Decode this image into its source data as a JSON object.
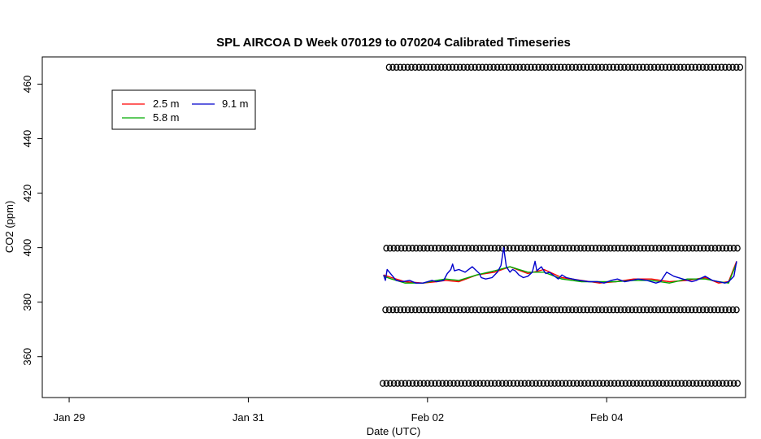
{
  "chart_data": {
    "type": "line",
    "title": "SPL AIRCOA D  Week 070129 to 070204  Calibrated Timeseries",
    "xlabel": "Date (UTC)",
    "ylabel": "CO2 (ppm)",
    "x_unit": "days (UTC)",
    "x_start_date": "2007-01-29",
    "xlim": [
      -0.3,
      7.55
    ],
    "ylim": [
      345,
      470
    ],
    "x_ticks": [
      {
        "label": "Jan 29",
        "x": 0
      },
      {
        "label": "Jan 31",
        "x": 2
      },
      {
        "label": "Feb 02",
        "x": 4
      },
      {
        "label": "Feb 04",
        "x": 6
      }
    ],
    "y_ticks": [
      360,
      380,
      400,
      420,
      440,
      460
    ],
    "legend": {
      "placement": "top-left",
      "entries": [
        {
          "name": "2.5 m",
          "color": "#ff0000"
        },
        {
          "name": "5.8 m",
          "color": "#00aa00"
        },
        {
          "name": "9.1 m",
          "color": "#0000cc"
        }
      ]
    },
    "series": [
      {
        "name": "2.5 m",
        "color": "#ff0000",
        "x": [
          3.51,
          3.6,
          3.75,
          3.95,
          4.1,
          4.2,
          4.35,
          4.55,
          4.75,
          4.92,
          5.12,
          5.3,
          5.5,
          5.72,
          5.92,
          6.1,
          6.3,
          6.5,
          6.7,
          6.9,
          7.1,
          7.25,
          7.36,
          7.45
        ],
        "values": [
          390,
          389,
          387.5,
          387,
          387.5,
          388,
          387.5,
          390,
          391,
          393,
          390.5,
          392,
          389,
          388,
          387,
          387.5,
          388.5,
          388.5,
          387.5,
          388,
          389,
          387,
          387.5,
          395
        ]
      },
      {
        "name": "5.8 m",
        "color": "#00aa00",
        "x": [
          3.51,
          3.6,
          3.75,
          3.95,
          4.1,
          4.2,
          4.35,
          4.55,
          4.75,
          4.92,
          5.12,
          5.3,
          5.5,
          5.72,
          5.92,
          6.1,
          6.3,
          6.5,
          6.7,
          6.9,
          7.1,
          7.25,
          7.36,
          7.45
        ],
        "values": [
          389.5,
          388.5,
          387,
          387,
          388,
          388.5,
          388,
          390,
          391.5,
          393,
          391,
          391,
          388.5,
          387.5,
          387.5,
          387.5,
          388,
          388,
          387,
          388.5,
          388.5,
          387.5,
          387,
          394.5
        ]
      },
      {
        "name": "9.1 m",
        "color": "#0000cc",
        "x": [
          3.51,
          3.53,
          3.55,
          3.6,
          3.65,
          3.72,
          3.8,
          3.87,
          3.95,
          4.0,
          4.05,
          4.1,
          4.18,
          4.22,
          4.26,
          4.28,
          4.3,
          4.35,
          4.42,
          4.5,
          4.58,
          4.6,
          4.65,
          4.72,
          4.78,
          4.82,
          4.85,
          4.88,
          4.92,
          4.95,
          4.98,
          5.02,
          5.07,
          5.12,
          5.17,
          5.2,
          5.22,
          5.27,
          5.32,
          5.36,
          5.42,
          5.46,
          5.5,
          5.55,
          5.62,
          5.7,
          5.8,
          5.9,
          5.97,
          6.05,
          6.12,
          6.2,
          6.28,
          6.35,
          6.45,
          6.55,
          6.6,
          6.67,
          6.75,
          6.85,
          6.95,
          7.0,
          7.1,
          7.18,
          7.25,
          7.32,
          7.36,
          7.39,
          7.42,
          7.45
        ],
        "values": [
          390,
          388,
          392,
          390,
          388,
          387.5,
          388,
          387,
          387,
          387.5,
          388,
          387.5,
          388,
          390.5,
          392,
          394,
          391.5,
          392,
          391,
          393,
          390.5,
          389,
          388.5,
          389,
          391,
          393.5,
          400,
          393,
          391,
          392,
          391.5,
          390,
          389,
          389.5,
          391,
          395,
          391.5,
          393,
          390.5,
          391,
          389.5,
          388.5,
          390,
          389,
          388.5,
          388,
          387.5,
          387.5,
          387,
          388,
          388.5,
          387.5,
          388,
          388.5,
          388,
          387,
          387.5,
          391,
          389.5,
          388.5,
          387.5,
          388,
          389.5,
          388,
          387.5,
          387,
          387.5,
          388.5,
          389.5,
          395
        ]
      }
    ],
    "markers": {
      "shape": "open-circle",
      "rows": [
        {
          "y": 466.2,
          "x_start": 3.57,
          "x_end": 7.49
        },
        {
          "y": 399.8,
          "x_start": 3.54,
          "x_end": 7.49
        },
        {
          "y": 377.2,
          "x_start": 3.53,
          "x_end": 7.49
        },
        {
          "y": 350.2,
          "x_start": 3.5,
          "x_end": 7.49
        }
      ]
    }
  }
}
